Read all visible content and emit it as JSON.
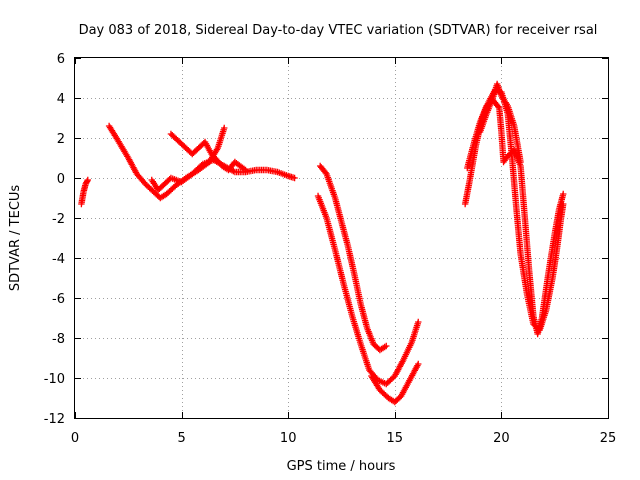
{
  "chart_data": {
    "type": "scatter",
    "title": "Day 083 of 2018, Sidereal Day-to-day VTEC variation (SDTVAR) for receiver rsal",
    "xlabel": "GPS time / hours",
    "ylabel": "SDTVAR / TECUs",
    "xlim": [
      0,
      25
    ],
    "ylim": [
      -12,
      6
    ],
    "xticks": [
      0,
      5,
      10,
      15,
      20,
      25
    ],
    "yticks": [
      -12,
      -10,
      -8,
      -6,
      -4,
      -2,
      0,
      2,
      4,
      6
    ],
    "grid": true,
    "marker": "+",
    "color": "#ff0000",
    "series": [
      {
        "points": [
          [
            0.3,
            -1.3
          ],
          [
            0.4,
            -0.7
          ],
          [
            0.5,
            -0.3
          ],
          [
            0.6,
            -0.1
          ]
        ]
      },
      {
        "points": [
          [
            1.6,
            2.6
          ],
          [
            2.0,
            1.9
          ],
          [
            2.5,
            1.0
          ],
          [
            2.9,
            0.2
          ],
          [
            3.3,
            -0.3
          ],
          [
            3.7,
            -0.7
          ],
          [
            4.0,
            -1.0
          ],
          [
            4.3,
            -0.8
          ],
          [
            4.7,
            -0.4
          ],
          [
            5.2,
            0.0
          ],
          [
            5.8,
            0.4
          ],
          [
            6.3,
            0.8
          ],
          [
            6.7,
            1.5
          ],
          [
            7.0,
            2.5
          ]
        ]
      },
      {
        "points": [
          [
            3.6,
            -0.1
          ],
          [
            3.9,
            -0.6
          ],
          [
            4.2,
            -0.3
          ],
          [
            4.5,
            0.0
          ],
          [
            5.0,
            -0.2
          ],
          [
            5.5,
            0.2
          ],
          [
            6.0,
            0.7
          ],
          [
            6.5,
            0.9
          ],
          [
            7.0,
            0.6
          ],
          [
            7.5,
            0.3
          ],
          [
            8.0,
            0.3
          ],
          [
            8.5,
            0.4
          ],
          [
            9.0,
            0.4
          ],
          [
            9.5,
            0.3
          ],
          [
            10.0,
            0.1
          ],
          [
            10.3,
            0.0
          ]
        ]
      },
      {
        "points": [
          [
            4.5,
            2.2
          ],
          [
            5.0,
            1.7
          ],
          [
            5.5,
            1.2
          ],
          [
            5.8,
            1.5
          ],
          [
            6.1,
            1.8
          ],
          [
            6.4,
            1.2
          ],
          [
            6.9,
            0.6
          ],
          [
            7.2,
            0.4
          ],
          [
            7.5,
            0.8
          ],
          [
            8.0,
            0.4
          ]
        ]
      },
      {
        "points": [
          [
            11.5,
            0.6
          ],
          [
            11.8,
            0.2
          ],
          [
            12.2,
            -1.0
          ],
          [
            12.5,
            -2.2
          ],
          [
            12.8,
            -3.4
          ],
          [
            13.1,
            -4.8
          ],
          [
            13.4,
            -6.3
          ],
          [
            13.7,
            -7.5
          ],
          [
            14.0,
            -8.3
          ],
          [
            14.3,
            -8.6
          ],
          [
            14.6,
            -8.4
          ]
        ]
      },
      {
        "points": [
          [
            11.4,
            -0.9
          ],
          [
            11.8,
            -2.0
          ],
          [
            12.2,
            -3.6
          ],
          [
            12.6,
            -5.3
          ],
          [
            13.0,
            -6.9
          ],
          [
            13.4,
            -8.3
          ],
          [
            13.8,
            -9.6
          ],
          [
            14.2,
            -10.1
          ],
          [
            14.6,
            -10.3
          ],
          [
            15.0,
            -9.9
          ],
          [
            15.4,
            -9.1
          ],
          [
            15.8,
            -8.2
          ],
          [
            16.1,
            -7.2
          ]
        ]
      },
      {
        "points": [
          [
            13.9,
            -9.9
          ],
          [
            14.3,
            -10.6
          ],
          [
            14.7,
            -11.0
          ],
          [
            15.0,
            -11.2
          ],
          [
            15.3,
            -10.9
          ],
          [
            15.6,
            -10.3
          ],
          [
            15.9,
            -9.7
          ],
          [
            16.1,
            -9.3
          ]
        ]
      },
      {
        "points": [
          [
            18.3,
            -1.3
          ],
          [
            18.5,
            -0.2
          ],
          [
            18.8,
            1.6
          ],
          [
            19.1,
            3.0
          ],
          [
            19.4,
            3.8
          ],
          [
            19.7,
            4.4
          ],
          [
            20.0,
            4.3
          ],
          [
            20.3,
            3.2
          ],
          [
            20.5,
            1.0
          ],
          [
            20.7,
            -1.5
          ],
          [
            20.9,
            -3.8
          ],
          [
            21.2,
            -5.8
          ],
          [
            21.5,
            -7.3
          ],
          [
            21.8,
            -7.6
          ],
          [
            22.1,
            -6.6
          ],
          [
            22.4,
            -5.0
          ],
          [
            22.6,
            -3.6
          ],
          [
            22.8,
            -2.0
          ],
          [
            22.9,
            -1.3
          ]
        ]
      },
      {
        "points": [
          [
            18.4,
            0.5
          ],
          [
            18.7,
            1.7
          ],
          [
            19.0,
            2.8
          ],
          [
            19.3,
            3.6
          ],
          [
            19.6,
            3.9
          ],
          [
            19.9,
            3.5
          ],
          [
            20.0,
            2.3
          ],
          [
            20.1,
            0.8
          ],
          [
            20.3,
            1.1
          ],
          [
            20.6,
            1.4
          ],
          [
            20.9,
            0.6
          ],
          [
            21.1,
            -2.0
          ],
          [
            21.3,
            -4.6
          ],
          [
            21.5,
            -6.9
          ],
          [
            21.7,
            -7.8
          ],
          [
            21.9,
            -7.0
          ],
          [
            22.2,
            -4.8
          ],
          [
            22.5,
            -2.8
          ],
          [
            22.7,
            -1.6
          ],
          [
            22.9,
            -0.8
          ]
        ]
      },
      {
        "points": [
          [
            19.0,
            2.3
          ],
          [
            19.3,
            3.2
          ],
          [
            19.6,
            4.0
          ],
          [
            19.8,
            4.7
          ],
          [
            20.0,
            4.1
          ],
          [
            20.3,
            3.6
          ],
          [
            20.6,
            2.6
          ],
          [
            20.9,
            0.8
          ]
        ]
      }
    ]
  }
}
